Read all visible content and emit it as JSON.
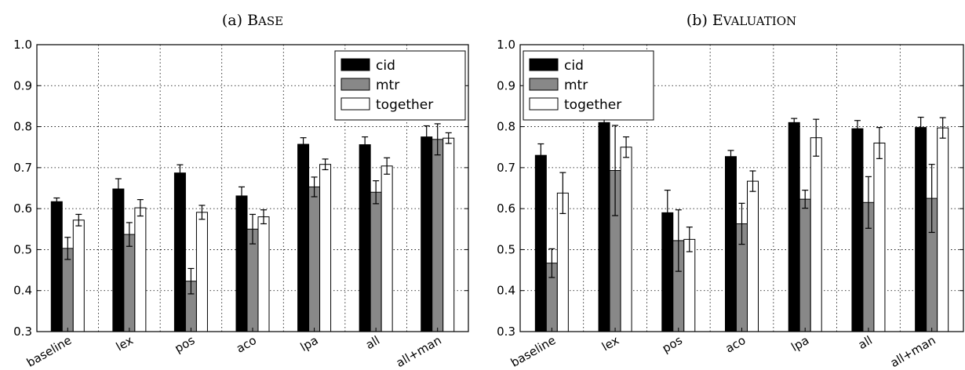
{
  "chart_data": [
    {
      "type": "bar",
      "title_prefix": "(a) ",
      "title_first": "B",
      "title_rest": "ASE",
      "categories": [
        "baseline",
        "lex",
        "pos",
        "aco",
        "lpa",
        "all",
        "all+man"
      ],
      "ylim": [
        0.3,
        1.0
      ],
      "yticks": [
        "0.3",
        "0.4",
        "0.5",
        "0.6",
        "0.7",
        "0.8",
        "0.9",
        "1.0"
      ],
      "grid": true,
      "legend_position": "top-right",
      "series": [
        {
          "name": "cid",
          "color": "#000000",
          "values": [
            0.617,
            0.648,
            0.687,
            0.631,
            0.757,
            0.756,
            0.775
          ],
          "errors": [
            0.009,
            0.025,
            0.02,
            0.022,
            0.016,
            0.019,
            0.027
          ]
        },
        {
          "name": "mtr",
          "color": "#888888",
          "values": [
            0.503,
            0.537,
            0.423,
            0.55,
            0.653,
            0.64,
            0.769
          ],
          "errors": [
            0.027,
            0.029,
            0.031,
            0.036,
            0.024,
            0.028,
            0.038
          ]
        },
        {
          "name": "together",
          "color": "#ffffff",
          "values": [
            0.572,
            0.602,
            0.591,
            0.58,
            0.708,
            0.704,
            0.772
          ],
          "errors": [
            0.014,
            0.02,
            0.017,
            0.017,
            0.013,
            0.02,
            0.013
          ]
        }
      ]
    },
    {
      "type": "bar",
      "title_prefix": "(b) ",
      "title_first": "E",
      "title_rest": "VALUATION",
      "categories": [
        "baseline",
        "lex",
        "pos",
        "aco",
        "lpa",
        "all",
        "all+man"
      ],
      "ylim": [
        0.3,
        1.0
      ],
      "yticks": [
        "0.3",
        "0.4",
        "0.5",
        "0.6",
        "0.7",
        "0.8",
        "0.9",
        "1.0"
      ],
      "grid": true,
      "legend_position": "top-left",
      "series": [
        {
          "name": "cid",
          "color": "#000000",
          "values": [
            0.73,
            0.81,
            0.59,
            0.727,
            0.81,
            0.795,
            0.798
          ],
          "errors": [
            0.028,
            0.02,
            0.055,
            0.015,
            0.01,
            0.02,
            0.025
          ]
        },
        {
          "name": "mtr",
          "color": "#888888",
          "values": [
            0.467,
            0.693,
            0.522,
            0.563,
            0.623,
            0.615,
            0.625
          ],
          "errors": [
            0.035,
            0.11,
            0.075,
            0.05,
            0.022,
            0.063,
            0.083
          ]
        },
        {
          "name": "together",
          "color": "#ffffff",
          "values": [
            0.638,
            0.75,
            0.525,
            0.667,
            0.773,
            0.76,
            0.797
          ],
          "errors": [
            0.05,
            0.025,
            0.03,
            0.025,
            0.045,
            0.038,
            0.025
          ]
        }
      ]
    }
  ]
}
